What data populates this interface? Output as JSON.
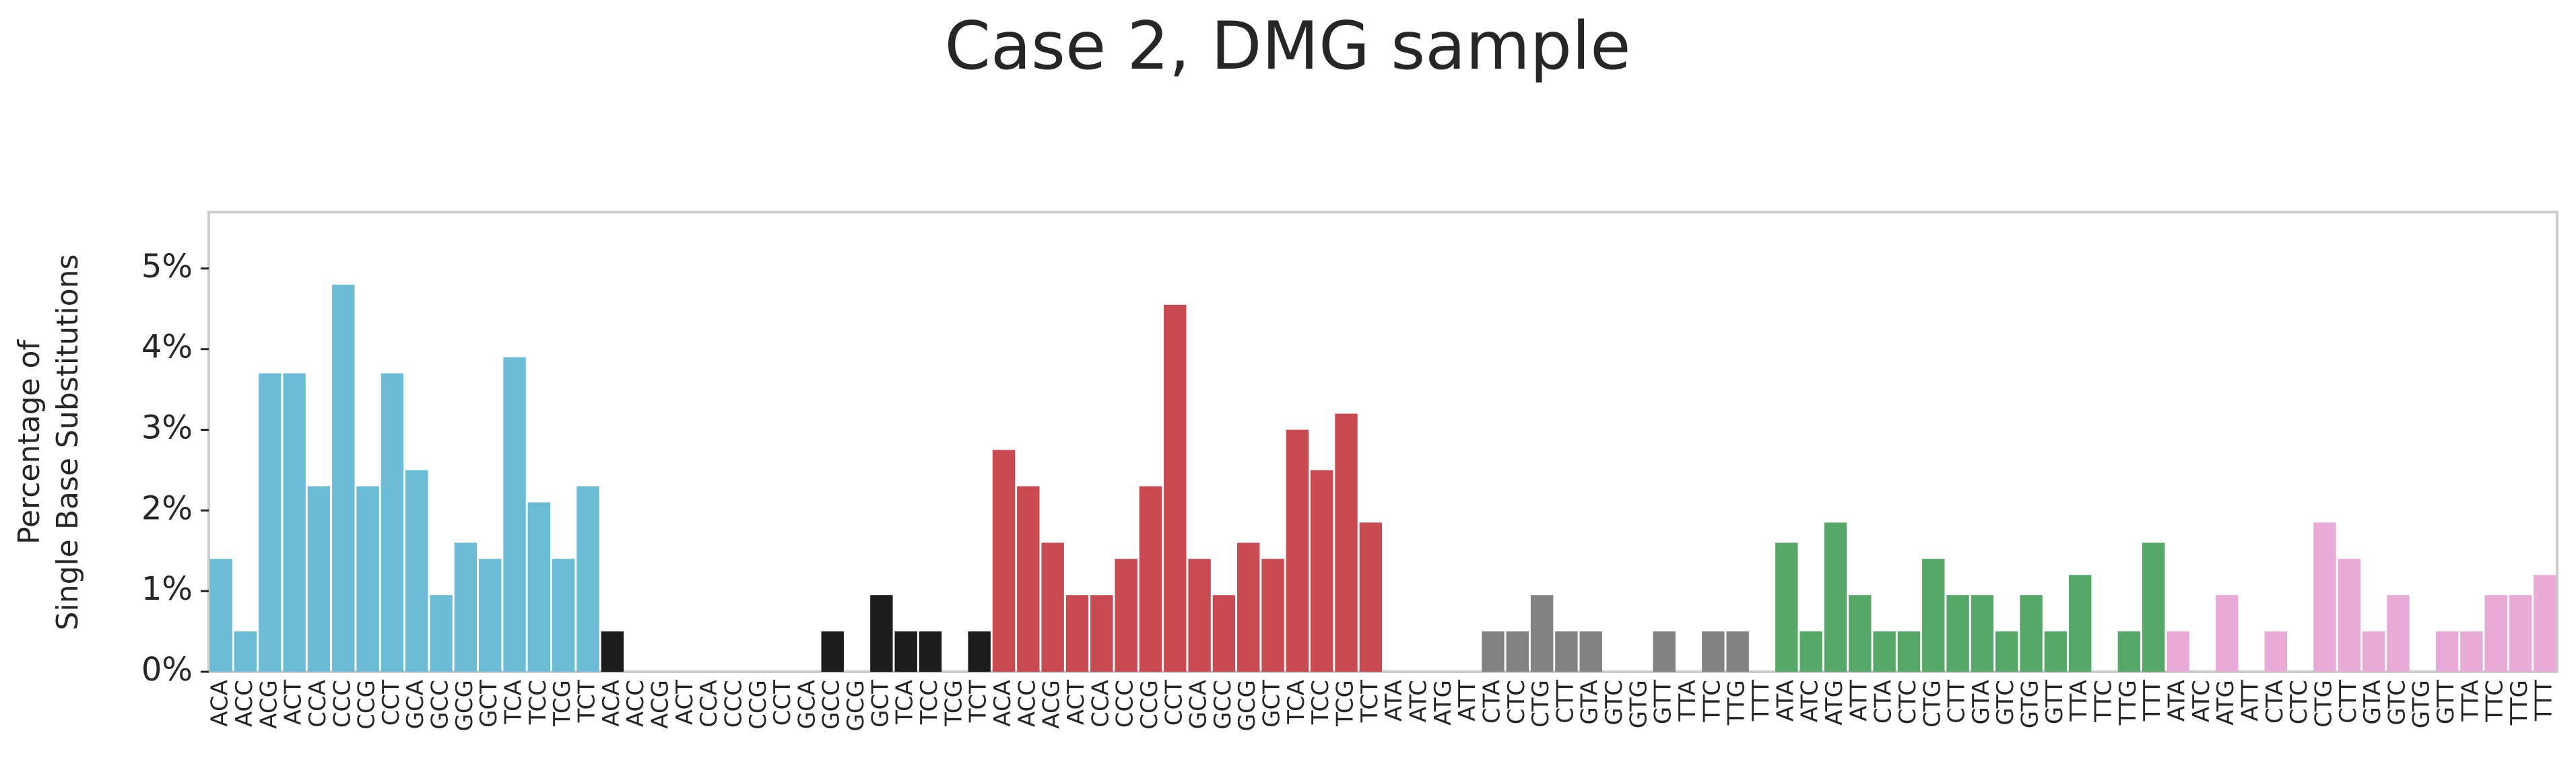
{
  "chart_data": {
    "type": "bar",
    "title": "Case 2, DMG sample",
    "ylabel": [
      "Percentage of",
      "Single Base Substitutions"
    ],
    "categories": [
      "ACA",
      "ACC",
      "ACG",
      "ACT",
      "CCA",
      "CCC",
      "CCG",
      "CCT",
      "GCA",
      "GCC",
      "GCG",
      "GCT",
      "TCA",
      "TCC",
      "TCG",
      "TCT",
      "ACA",
      "ACC",
      "ACG",
      "ACT",
      "CCA",
      "CCC",
      "CCG",
      "CCT",
      "GCA",
      "GCC",
      "GCG",
      "GCT",
      "TCA",
      "TCC",
      "TCG",
      "TCT",
      "ACA",
      "ACC",
      "ACG",
      "ACT",
      "CCA",
      "CCC",
      "CCG",
      "CCT",
      "GCA",
      "GCC",
      "GCG",
      "GCT",
      "TCA",
      "TCC",
      "TCG",
      "TCT",
      "ATA",
      "ATC",
      "ATG",
      "ATT",
      "CTA",
      "CTC",
      "CTG",
      "CTT",
      "GTA",
      "GTC",
      "GTG",
      "GTT",
      "TTA",
      "TTC",
      "TTG",
      "TTT",
      "ATA",
      "ATC",
      "ATG",
      "ATT",
      "CTA",
      "CTC",
      "CTG",
      "CTT",
      "GTA",
      "GTC",
      "GTG",
      "GTT",
      "TTA",
      "TTC",
      "TTG",
      "TTT",
      "ATA",
      "ATC",
      "ATG",
      "ATT",
      "CTA",
      "CTC",
      "CTG",
      "CTT",
      "GTA",
      "GTC",
      "GTG",
      "GTT",
      "TTA",
      "TTC",
      "TTG",
      "TTT"
    ],
    "values": [
      1.4,
      0.5,
      3.7,
      3.7,
      2.3,
      4.8,
      2.3,
      3.7,
      2.5,
      0.95,
      1.6,
      1.4,
      3.9,
      2.1,
      1.4,
      2.3,
      0.5,
      0,
      0,
      0,
      0,
      0,
      0,
      0,
      0,
      0.5,
      0,
      0.95,
      0.5,
      0.5,
      0,
      0.5,
      2.75,
      2.3,
      1.6,
      0.95,
      0.95,
      1.4,
      2.3,
      4.55,
      1.4,
      0.95,
      1.6,
      1.4,
      3.0,
      2.5,
      3.2,
      1.85,
      0,
      0,
      0,
      0,
      0.5,
      0.5,
      0.95,
      0.5,
      0.5,
      0,
      0,
      0.5,
      0,
      0.5,
      0.5,
      0,
      1.6,
      0.5,
      1.85,
      0.95,
      0.5,
      0.5,
      1.4,
      0.95,
      0.95,
      0.5,
      0.95,
      0.5,
      1.2,
      0,
      0.5,
      1.6,
      0.5,
      0,
      0.95,
      0,
      0.5,
      0,
      1.85,
      1.4,
      0.5,
      0.95,
      0,
      0.5,
      0.5,
      0.95,
      0.95,
      1.2
    ],
    "colors": [
      "#6dbcd6",
      "#6dbcd6",
      "#6dbcd6",
      "#6dbcd6",
      "#6dbcd6",
      "#6dbcd6",
      "#6dbcd6",
      "#6dbcd6",
      "#6dbcd6",
      "#6dbcd6",
      "#6dbcd6",
      "#6dbcd6",
      "#6dbcd6",
      "#6dbcd6",
      "#6dbcd6",
      "#6dbcd6",
      "#1c1c1c",
      "#1c1c1c",
      "#1c1c1c",
      "#1c1c1c",
      "#1c1c1c",
      "#1c1c1c",
      "#1c1c1c",
      "#1c1c1c",
      "#1c1c1c",
      "#1c1c1c",
      "#1c1c1c",
      "#1c1c1c",
      "#1c1c1c",
      "#1c1c1c",
      "#1c1c1c",
      "#1c1c1c",
      "#c94b51",
      "#c94b51",
      "#c94b51",
      "#c94b51",
      "#c94b51",
      "#c94b51",
      "#c94b51",
      "#c94b51",
      "#c94b51",
      "#c94b51",
      "#c94b51",
      "#c94b51",
      "#c94b51",
      "#c94b51",
      "#c94b51",
      "#c94b51",
      "#828282",
      "#828282",
      "#828282",
      "#828282",
      "#828282",
      "#828282",
      "#828282",
      "#828282",
      "#828282",
      "#828282",
      "#828282",
      "#828282",
      "#828282",
      "#828282",
      "#828282",
      "#828282",
      "#55a868",
      "#55a868",
      "#55a868",
      "#55a868",
      "#55a868",
      "#55a868",
      "#55a868",
      "#55a868",
      "#55a868",
      "#55a868",
      "#55a868",
      "#55a868",
      "#55a868",
      "#55a868",
      "#55a868",
      "#55a868",
      "#e8aad6",
      "#e8aad6",
      "#e8aad6",
      "#e8aad6",
      "#e8aad6",
      "#e8aad6",
      "#e8aad6",
      "#e8aad6",
      "#e8aad6",
      "#e8aad6",
      "#e8aad6",
      "#e8aad6",
      "#e8aad6",
      "#e8aad6",
      "#e8aad6",
      "#e8aad6"
    ],
    "ylim": [
      0,
      5.7
    ],
    "yticks": [
      {
        "value": 0,
        "label": "0%"
      },
      {
        "value": 1,
        "label": "1%"
      },
      {
        "value": 2,
        "label": "2%"
      },
      {
        "value": 3,
        "label": "3%"
      },
      {
        "value": 4,
        "label": "4%"
      },
      {
        "value": 5,
        "label": "5%"
      }
    ],
    "grid": false
  }
}
